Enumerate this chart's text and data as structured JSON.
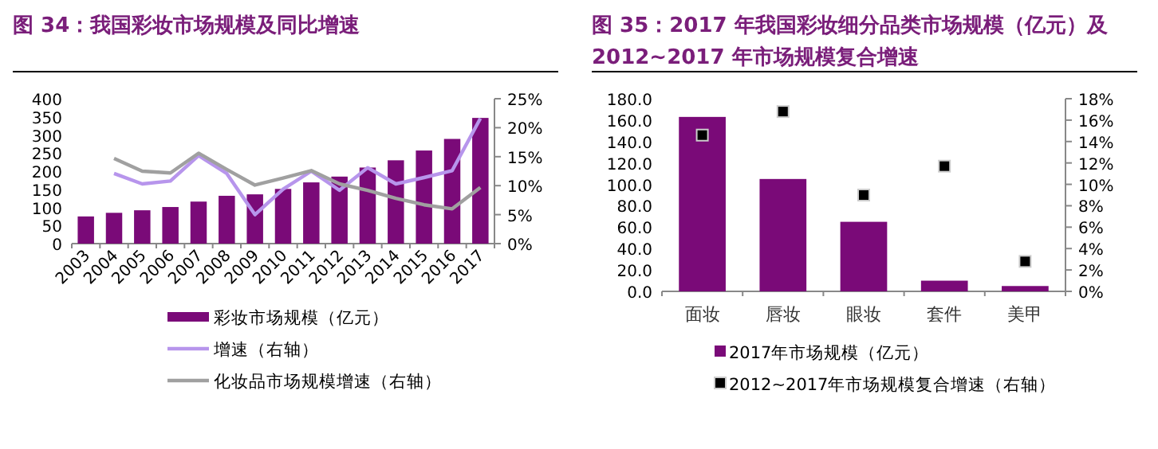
{
  "chart_data": [
    {
      "type": "bar",
      "title": "图 34：我国彩妆市场规模及同比增速",
      "categories": [
        "2003",
        "2004",
        "2005",
        "2006",
        "2007",
        "2008",
        "2009",
        "2010",
        "2011",
        "2012",
        "2013",
        "2014",
        "2015",
        "2016",
        "2017"
      ],
      "series": [
        {
          "name": "彩妆市场规模（亿元）",
          "color": "#7a0a78",
          "values": [
            75,
            85,
            92,
            101,
            116,
            132,
            136,
            151,
            169,
            185,
            210,
            230,
            257,
            289,
            347
          ]
        },
        {
          "name": "增速（右轴）",
          "type": "line",
          "axis": "y2",
          "color": "#b795ec",
          "values": [
            null,
            12.1,
            10.3,
            10.8,
            15.2,
            12.1,
            5.0,
            9.4,
            12.5,
            9.2,
            13.1,
            10.3,
            11.4,
            12.6,
            21.6
          ]
        },
        {
          "name": "化妆品市场规模增速（右轴）",
          "type": "line",
          "axis": "y2",
          "color": "#a0a0a0",
          "values": [
            null,
            14.7,
            12.5,
            12.2,
            15.6,
            12.8,
            10.1,
            11.3,
            12.6,
            10.3,
            9.2,
            7.8,
            6.7,
            6.0,
            9.7
          ]
        }
      ],
      "ylim": [
        0,
        400
      ],
      "yticks": [
        0,
        50,
        100,
        150,
        200,
        250,
        300,
        350,
        400
      ],
      "y2lim": [
        0,
        25
      ],
      "y2ticks": [
        {
          "value": 0,
          "label": "0%"
        },
        {
          "value": 5,
          "label": "5%"
        },
        {
          "value": 10,
          "label": "10%"
        },
        {
          "value": 15,
          "label": "15%"
        },
        {
          "value": 20,
          "label": "20%"
        },
        {
          "value": 25,
          "label": "25%"
        }
      ],
      "grid": false,
      "legend": "bottom",
      "marker": "none"
    },
    {
      "type": "bar",
      "title": "图 35：2017 年我国彩妆细分品类市场规模（亿元）及2012~2017 年市场规模复合增速",
      "categories": [
        "面妆",
        "唇妆",
        "眼妆",
        "套件",
        "美甲"
      ],
      "series": [
        {
          "name": "2017年市场规模（亿元）",
          "color": "#7a0a78",
          "values": [
            163,
            105,
            65,
            10,
            5
          ]
        },
        {
          "name": "2012~2017年市场规模复合增速（右轴）",
          "type": "scatter",
          "axis": "y2",
          "color": "#000000",
          "marker": "square",
          "values": [
            14.6,
            16.8,
            9.0,
            11.7,
            2.8
          ]
        }
      ],
      "ylim": [
        0,
        180
      ],
      "yticks": [
        {
          "value": 0,
          "label": "0.0"
        },
        {
          "value": 20,
          "label": "20.0"
        },
        {
          "value": 40,
          "label": "40.0"
        },
        {
          "value": 60,
          "label": "60.0"
        },
        {
          "value": 80,
          "label": "80.0"
        },
        {
          "value": 100,
          "label": "100.0"
        },
        {
          "value": 120,
          "label": "120.0"
        },
        {
          "value": 140,
          "label": "140.0"
        },
        {
          "value": 160,
          "label": "160.0"
        },
        {
          "value": 180,
          "label": "180.0"
        }
      ],
      "y2lim": [
        0,
        18
      ],
      "y2ticks": [
        {
          "value": 0,
          "label": "0%"
        },
        {
          "value": 2,
          "label": "2%"
        },
        {
          "value": 4,
          "label": "4%"
        },
        {
          "value": 6,
          "label": "6%"
        },
        {
          "value": 8,
          "label": "8%"
        },
        {
          "value": 10,
          "label": "10%"
        },
        {
          "value": 12,
          "label": "12%"
        },
        {
          "value": 14,
          "label": "14%"
        },
        {
          "value": 16,
          "label": "16%"
        },
        {
          "value": 18,
          "label": "18%"
        }
      ],
      "grid": false,
      "legend": "bottom"
    }
  ]
}
